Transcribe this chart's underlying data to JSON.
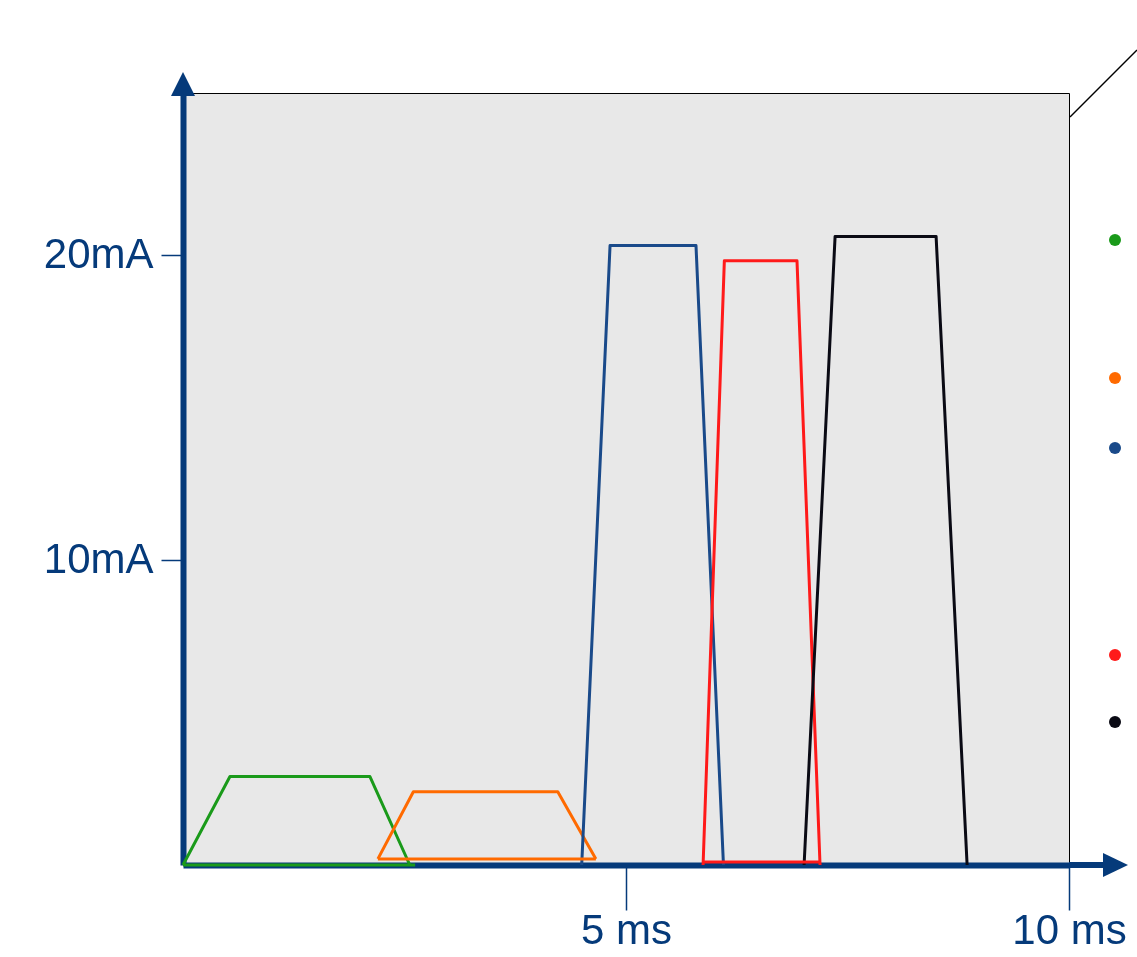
{
  "chart_data": {
    "type": "line",
    "xlim": [
      0,
      10
    ],
    "ylim": [
      0,
      25.3
    ],
    "xticks": [
      {
        "value": 5,
        "label": "5 ms"
      },
      {
        "value": 10,
        "label": "10 ms"
      }
    ],
    "yticks": [
      {
        "value": 10,
        "label": "10mA"
      },
      {
        "value": 20,
        "label": "20mA"
      }
    ],
    "series": [
      {
        "color": "#1a9a1a",
        "x": [
          0,
          0.53,
          2.11,
          2.56
        ],
        "values": [
          0,
          2.9,
          2.9,
          0
        ]
      },
      {
        "color": "#ff6a00",
        "x": [
          2.2,
          2.6,
          4.23,
          4.66
        ],
        "values": [
          0.2,
          2.4,
          2.4,
          0.2
        ]
      },
      {
        "color": "#1a4a8a",
        "x": [
          4.5,
          4.82,
          5.79,
          6.1
        ],
        "values": [
          0,
          20.3,
          20.3,
          0
        ]
      },
      {
        "color": "#ff1a1a",
        "x": [
          5.87,
          6.11,
          6.93,
          7.19
        ],
        "values": [
          0,
          19.8,
          19.8,
          0
        ]
      },
      {
        "color": "#0a0a14",
        "x": [
          7.01,
          7.36,
          8.5,
          8.85
        ],
        "values": [
          0,
          20.6,
          20.6,
          0
        ]
      },
      {
        "color": "#1a9a1a",
        "x": [
          0,
          2.62
        ],
        "values": [
          0,
          0
        ]
      },
      {
        "color": "#ff6a00",
        "x": [
          2.2,
          4.66
        ],
        "values": [
          0.2,
          0.2
        ]
      },
      {
        "color": "#ff1a1a",
        "x": [
          5.87,
          7.19
        ],
        "values": [
          0.1,
          0.1
        ]
      }
    ]
  }
}
